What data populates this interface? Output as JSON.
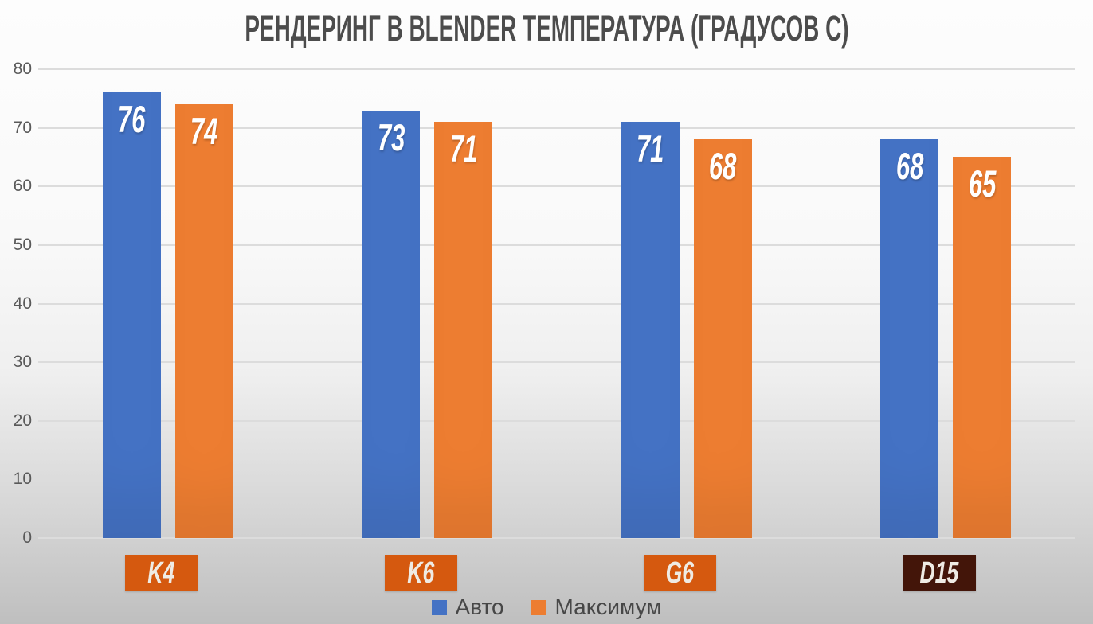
{
  "chart_data": {
    "type": "bar",
    "title": "РЕНДЕРИНГ В BLENDER ТЕМПЕРАТУРА (ГРАДУСОВ C)",
    "categories": [
      "K4",
      "K6",
      "G6",
      "D15"
    ],
    "series": [
      {
        "name": "Авто",
        "color": "#4472C4",
        "values": [
          76,
          73,
          71,
          68
        ]
      },
      {
        "name": "Максимум",
        "color": "#ED7D31",
        "values": [
          74,
          71,
          68,
          65
        ]
      }
    ],
    "xlabel": "",
    "ylabel": "",
    "ylim": [
      0,
      80
    ],
    "yticks": [
      0,
      10,
      20,
      30,
      40,
      50,
      60,
      70,
      80
    ],
    "grid": true,
    "legend_position": "bottom",
    "value_labels_shown": true,
    "value_label_color": "#FFFFFF",
    "category_label_boxes": [
      {
        "label": "K4",
        "bg": "#D5590F",
        "fg": "#EFEBE4"
      },
      {
        "label": "K6",
        "bg": "#D5590F",
        "fg": "#EFEBE4"
      },
      {
        "label": "G6",
        "bg": "#D5590F",
        "fg": "#EFEBE4"
      },
      {
        "label": "D15",
        "bg": "#431509",
        "fg": "#EFEBE4"
      }
    ]
  },
  "styles": {
    "title_color": "#4C4C4C",
    "axis_tick_color": "#595959",
    "gridline_color": "#DCDCDC",
    "legend_text_color": "#474747",
    "background_top": "#FDFDFD",
    "background_bottom": "#BFBFBF"
  }
}
